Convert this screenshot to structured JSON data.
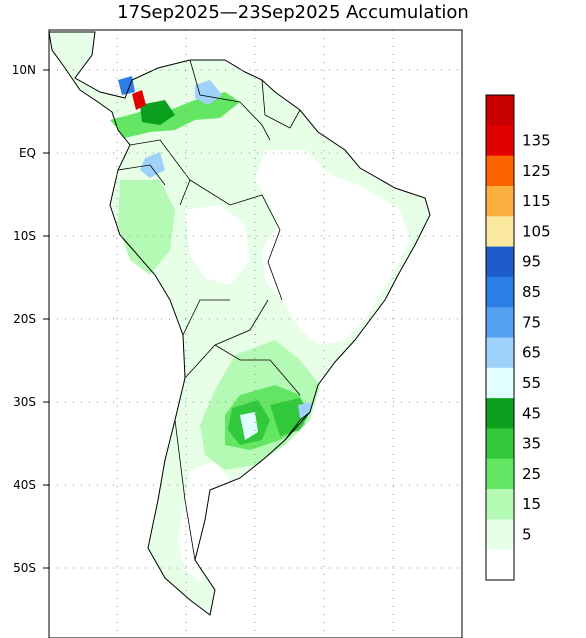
{
  "title": "17Sep2025—23Sep2025 Accumulation",
  "lat_labels": [
    "10N",
    "EQ",
    "10S",
    "20S",
    "30S",
    "40S",
    "50S"
  ],
  "legend": {
    "levels": [
      "135",
      "125",
      "115",
      "105",
      "95",
      "85",
      "75",
      "65",
      "55",
      "45",
      "35",
      "25",
      "15",
      "5"
    ],
    "colors": [
      "#c80000",
      "#e00000",
      "#fa6400",
      "#fbb040",
      "#fbe9a0",
      "#1e5ccc",
      "#2d7de6",
      "#55a0f0",
      "#9ed2fa",
      "#e1ffff",
      "#0aa01e",
      "#32c83c",
      "#64e664",
      "#b4fab4",
      "#e6ffe6",
      "#ffffff"
    ]
  },
  "grid": {
    "lines": "dotted"
  }
}
